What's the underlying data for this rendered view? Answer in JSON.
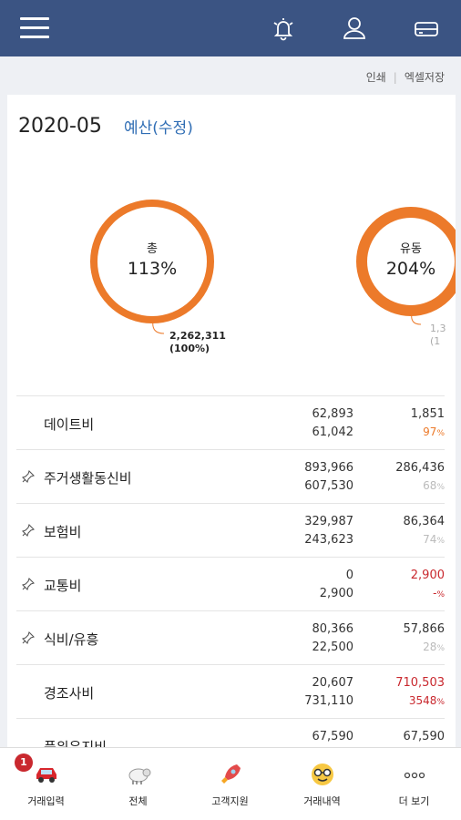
{
  "header": {
    "menu_icon": "hamburger-icon",
    "alarm_icon": "bell-icon",
    "user_icon": "user-icon",
    "card_icon": "card-icon",
    "bg_color": "#3b5483"
  },
  "actions": {
    "print": "인쇄",
    "sep": "|",
    "excel": "엑셀저장"
  },
  "summary": {
    "period": "2020-05",
    "budget_edit": "예산(수정)",
    "accent": "#ec7a2a",
    "total": {
      "label": "총",
      "percent": "113%",
      "amount": "2,262,311",
      "amount_pct": "(100%)"
    },
    "floating": {
      "label": "유동",
      "percent": "204%",
      "amount_partial": "1,3",
      "amount_pct_partial": "(1"
    }
  },
  "rows": [
    {
      "name": "데이트비",
      "pinned": false,
      "v1": "62,893",
      "v2": "61,042",
      "r1": "1,851",
      "r2": "97",
      "r1_color": "#333",
      "r2_color": "#ec7a2a"
    },
    {
      "name": "주거생활동신비",
      "pinned": true,
      "v1": "893,966",
      "v2": "607,530",
      "r1": "286,436",
      "r2": "68",
      "r1_color": "#333",
      "r2_color": "#bbb"
    },
    {
      "name": "보험비",
      "pinned": true,
      "v1": "329,987",
      "v2": "243,623",
      "r1": "86,364",
      "r2": "74",
      "r1_color": "#333",
      "r2_color": "#bbb"
    },
    {
      "name": "교통비",
      "pinned": true,
      "v1": "0",
      "v2": "2,900",
      "r1": "2,900",
      "r2": "-",
      "r1_color": "#c9282e",
      "r2_color": "#c9282e"
    },
    {
      "name": "식비/유흥",
      "pinned": true,
      "v1": "80,366",
      "v2": "22,500",
      "r1": "57,866",
      "r2": "28",
      "r1_color": "#333",
      "r2_color": "#bbb"
    },
    {
      "name": "경조사비",
      "pinned": false,
      "v1": "20,607",
      "v2": "731,110",
      "r1": "710,503",
      "r2": "3548",
      "r1_color": "#c9282e",
      "r2_color": "#c9282e"
    },
    {
      "name": "품위유지비",
      "pinned": false,
      "v1": "67,590",
      "v2": "",
      "r1": "67,590",
      "r2": "",
      "r1_color": "#333",
      "r2_color": "#333"
    }
  ],
  "percent_unit": "%",
  "bottom_nav": [
    {
      "label": "거래입력",
      "icon": "car-icon",
      "badge": "1"
    },
    {
      "label": "전체",
      "icon": "sheep-icon",
      "badge": ""
    },
    {
      "label": "고객지원",
      "icon": "rocket-icon",
      "badge": ""
    },
    {
      "label": "거래내역",
      "icon": "nerd-face-icon",
      "badge": ""
    },
    {
      "label": "더 보기",
      "icon": "more-dots-icon",
      "badge": ""
    }
  ]
}
